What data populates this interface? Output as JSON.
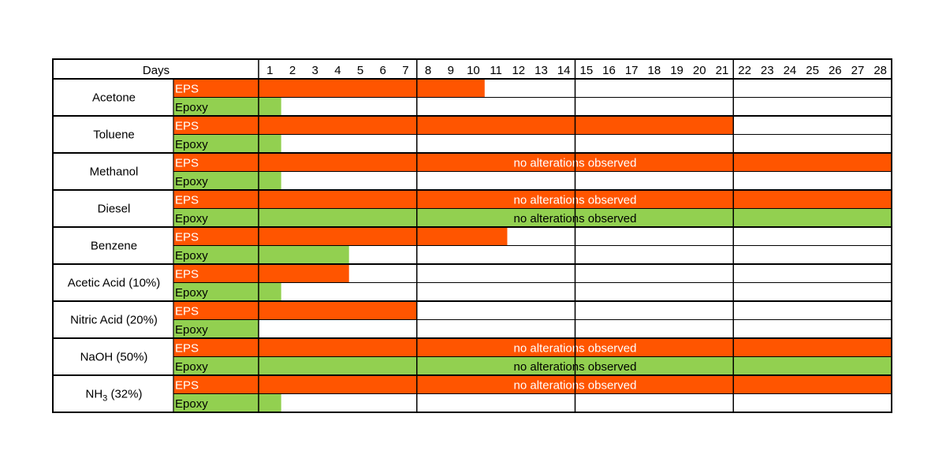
{
  "chart_data": {
    "type": "gantt",
    "header": {
      "label": "Days"
    },
    "days": [
      "1",
      "2",
      "3",
      "4",
      "5",
      "6",
      "7",
      "8",
      "9",
      "10",
      "11",
      "12",
      "13",
      "14",
      "15",
      "16",
      "17",
      "18",
      "19",
      "20",
      "21",
      "22",
      "23",
      "24",
      "25",
      "26",
      "27",
      "28"
    ],
    "week_ends": [
      7,
      14,
      21
    ],
    "bar_note": "no alterations observed",
    "colors": {
      "EPS": "#ff5500",
      "Epoxy": "#92d050",
      "grid": "#000000",
      "note_text": "#ffffff"
    },
    "rows": [
      {
        "chemical": "Acetone",
        "chemical_sub": "",
        "chemical_suffix": "",
        "series": [
          {
            "name": "EPS",
            "days": 10,
            "note": false
          },
          {
            "name": "Epoxy",
            "days": 1,
            "note": false
          }
        ]
      },
      {
        "chemical": "Toluene",
        "chemical_sub": "",
        "chemical_suffix": "",
        "series": [
          {
            "name": "EPS",
            "days": 21,
            "note": false
          },
          {
            "name": "Epoxy",
            "days": 1,
            "note": false
          }
        ]
      },
      {
        "chemical": "Methanol",
        "chemical_sub": "",
        "chemical_suffix": "",
        "series": [
          {
            "name": "EPS",
            "days": 28,
            "note": true
          },
          {
            "name": "Epoxy",
            "days": 1,
            "note": false
          }
        ]
      },
      {
        "chemical": "Diesel",
        "chemical_sub": "",
        "chemical_suffix": "",
        "series": [
          {
            "name": "EPS",
            "days": 28,
            "note": true
          },
          {
            "name": "Epoxy",
            "days": 28,
            "note": true
          }
        ]
      },
      {
        "chemical": "Benzene",
        "chemical_sub": "",
        "chemical_suffix": "",
        "series": [
          {
            "name": "EPS",
            "days": 11,
            "note": false
          },
          {
            "name": "Epoxy",
            "days": 4,
            "note": false
          }
        ]
      },
      {
        "chemical": "Acetic Acid (10%)",
        "chemical_sub": "",
        "chemical_suffix": "",
        "series": [
          {
            "name": "EPS",
            "days": 4,
            "note": false
          },
          {
            "name": "Epoxy",
            "days": 1,
            "note": false
          }
        ]
      },
      {
        "chemical": "Nitric Acid (20%)",
        "chemical_sub": "",
        "chemical_suffix": "",
        "series": [
          {
            "name": "EPS",
            "days": 7,
            "note": false
          },
          {
            "name": "Epoxy",
            "days": 0,
            "note": false
          }
        ]
      },
      {
        "chemical": "NaOH (50%)",
        "chemical_sub": "",
        "chemical_suffix": "",
        "series": [
          {
            "name": "EPS",
            "days": 28,
            "note": true
          },
          {
            "name": "Epoxy",
            "days": 28,
            "note": true
          }
        ]
      },
      {
        "chemical": "NH",
        "chemical_sub": "3",
        "chemical_suffix": " (32%)",
        "series": [
          {
            "name": "EPS",
            "days": 28,
            "note": true
          },
          {
            "name": "Epoxy",
            "days": 1,
            "note": false
          }
        ]
      }
    ]
  }
}
